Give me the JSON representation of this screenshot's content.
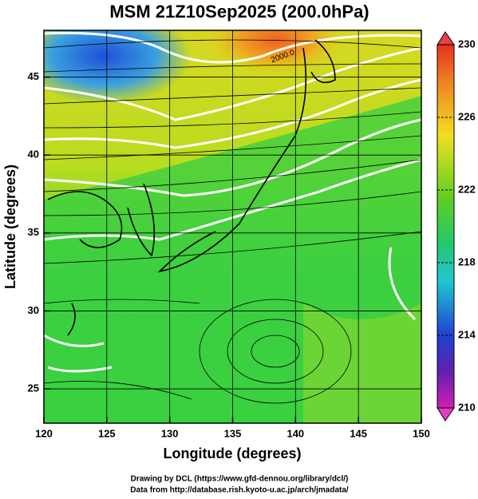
{
  "title": "MSM 21Z10Sep2025 (200.0hPa)",
  "x_axis": {
    "label": "Longitude (degrees)",
    "lim": [
      120,
      150
    ],
    "ticks": [
      120,
      125,
      130,
      135,
      140,
      145,
      150
    ]
  },
  "y_axis": {
    "label": "Latitude  (degrees)",
    "lim": [
      22.8,
      48
    ],
    "ticks": [
      25,
      30,
      35,
      40,
      45
    ]
  },
  "colorbar": {
    "lim": [
      210,
      230
    ],
    "ticks": [
      210,
      214,
      218,
      222,
      226,
      230
    ]
  },
  "contour_label": "2000.0",
  "footer": [
    "Drawing by DCL (https://www.gfd-dennou.org/library/dcl/)",
    "Data from http://database.rish.kyoto-u.ac.jp/arch/jmadata/"
  ]
}
